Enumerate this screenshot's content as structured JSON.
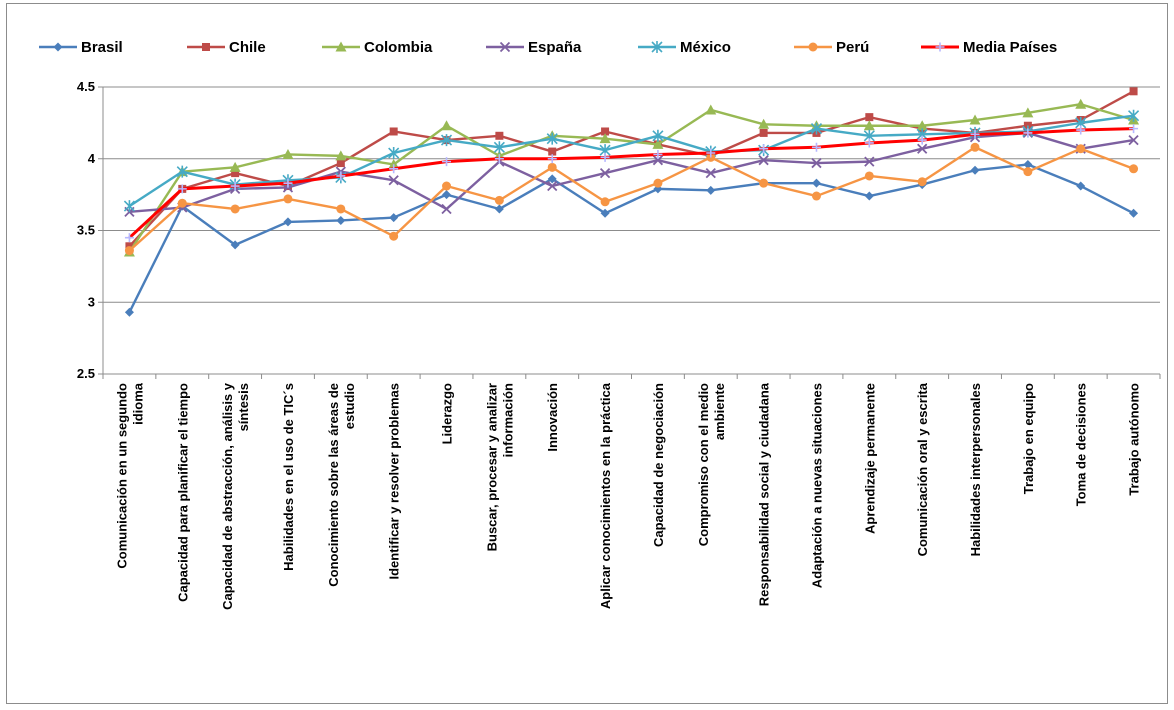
{
  "chart_data": {
    "type": "line",
    "title": "",
    "xlabel": "",
    "ylabel": "",
    "ylim": [
      2.5,
      4.5
    ],
    "yticks": [
      "2.5",
      "3",
      "3.5",
      "4",
      "4.5"
    ],
    "grid": "y-major",
    "legend_position": "top",
    "categories": [
      [
        "Comunicación en un segundo",
        "idioma"
      ],
      [
        "Capacidad para planificar el tiempo"
      ],
      [
        "Capacidad de abstracción, análisis y",
        "síntesis"
      ],
      [
        "Habilidades en el uso de TIC´s"
      ],
      [
        "Conocimiento sobre las áreas de",
        "estudio"
      ],
      [
        "Identificar y resolver problemas"
      ],
      [
        "Liderazgo"
      ],
      [
        "Buscar, procesar y analizar",
        "información"
      ],
      [
        "Innovación"
      ],
      [
        "Aplicar conocimientos en la práctica"
      ],
      [
        "Capacidad de negociación"
      ],
      [
        "Compromiso con el medio",
        "ambiente"
      ],
      [
        "Responsabilidad social y ciudadana"
      ],
      [
        "Adaptación a nuevas situaciones"
      ],
      [
        "Aprendizaje permanente"
      ],
      [
        "Comunicación oral y escrita"
      ],
      [
        "Habilidades interpersonales"
      ],
      [
        "Trabajo en equipo"
      ],
      [
        "Toma de decisiones"
      ],
      [
        "Trabajo autónomo"
      ]
    ],
    "series": [
      {
        "name": "Brasil",
        "color": "#4a7ebb",
        "marker": "diamond",
        "values": [
          2.93,
          3.67,
          3.4,
          3.56,
          3.57,
          3.59,
          3.75,
          3.65,
          3.86,
          3.62,
          3.79,
          3.78,
          3.83,
          3.83,
          3.74,
          3.82,
          3.92,
          3.96,
          3.81,
          3.62
        ]
      },
      {
        "name": "Chile",
        "color": "#be4b48",
        "marker": "square",
        "values": [
          3.39,
          3.79,
          3.9,
          3.81,
          3.97,
          4.19,
          4.13,
          4.16,
          4.05,
          4.19,
          4.1,
          4.02,
          4.18,
          4.18,
          4.29,
          4.21,
          4.18,
          4.23,
          4.27,
          4.47
        ]
      },
      {
        "name": "Colombia",
        "color": "#98b954",
        "marker": "triangle",
        "values": [
          3.35,
          3.91,
          3.94,
          4.03,
          4.02,
          3.96,
          4.23,
          4.02,
          4.16,
          4.14,
          4.1,
          4.34,
          4.24,
          4.23,
          4.23,
          4.23,
          4.27,
          4.32,
          4.38,
          4.27
        ]
      },
      {
        "name": "España",
        "color": "#7d60a0",
        "marker": "x",
        "values": [
          3.63,
          3.66,
          3.79,
          3.8,
          3.91,
          3.85,
          3.65,
          3.98,
          3.81,
          3.9,
          3.99,
          3.9,
          3.99,
          3.97,
          3.98,
          4.07,
          4.15,
          4.18,
          4.07,
          4.13
        ]
      },
      {
        "name": "México",
        "color": "#46aac5",
        "marker": "star",
        "values": [
          3.67,
          3.91,
          3.82,
          3.85,
          3.87,
          4.04,
          4.13,
          4.08,
          4.14,
          4.06,
          4.16,
          4.05,
          4.06,
          4.21,
          4.16,
          4.17,
          4.18,
          4.19,
          4.25,
          4.3
        ]
      },
      {
        "name": "Perú",
        "color": "#f69544",
        "marker": "circle",
        "values": [
          3.36,
          3.69,
          3.65,
          3.72,
          3.65,
          3.46,
          3.81,
          3.71,
          3.94,
          3.7,
          3.83,
          4.01,
          3.83,
          3.74,
          3.88,
          3.84,
          4.08,
          3.91,
          4.07,
          3.93
        ]
      },
      {
        "name": "Media Países",
        "color": "#ff0000",
        "marker": "plus",
        "values": [
          3.45,
          3.79,
          3.81,
          3.83,
          3.88,
          3.93,
          3.98,
          4.0,
          4.0,
          4.01,
          4.03,
          4.04,
          4.07,
          4.08,
          4.11,
          4.13,
          4.17,
          4.18,
          4.2,
          4.21
        ]
      }
    ]
  }
}
